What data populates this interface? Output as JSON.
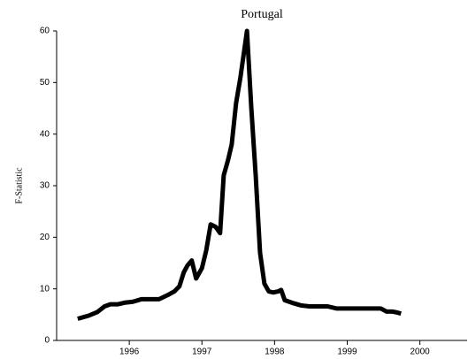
{
  "chart_data": {
    "type": "line",
    "title": "Portugal",
    "y_label": "F-Statistic",
    "x": [
      1995.29,
      1995.44,
      1995.56,
      1995.66,
      1995.74,
      1995.84,
      1995.93,
      1996.05,
      1996.17,
      1996.29,
      1996.41,
      1996.53,
      1996.62,
      1996.69,
      1996.75,
      1996.8,
      1996.86,
      1996.92,
      1997.0,
      1997.06,
      1997.12,
      1997.19,
      1997.25,
      1997.3,
      1997.36,
      1997.41,
      1997.47,
      1997.53,
      1997.58,
      1997.62,
      1997.68,
      1997.74,
      1997.8,
      1997.86,
      1997.92,
      1997.98,
      1998.05,
      1998.09,
      1998.14,
      1998.24,
      1998.36,
      1998.48,
      1998.61,
      1998.73,
      1998.85,
      1998.97,
      1999.09,
      1999.21,
      1999.33,
      1999.46,
      1999.54,
      1999.62,
      1999.69,
      1999.74
    ],
    "series": [
      {
        "name": "F-Statistic",
        "color": "#000000",
        "values": [
          4.2,
          4.8,
          5.5,
          6.6,
          7.0,
          7.0,
          7.3,
          7.5,
          8.0,
          8.0,
          8.0,
          8.8,
          9.5,
          10.5,
          13.2,
          14.5,
          15.5,
          12.0,
          14.0,
          17.5,
          22.5,
          22.0,
          20.8,
          32,
          35,
          38,
          46,
          51,
          56,
          60,
          45,
          32,
          17,
          11,
          9.5,
          9.3,
          9.5,
          9.8,
          7.8,
          7.3,
          6.8,
          6.6,
          6.6,
          6.6,
          6.2,
          6.2,
          6.2,
          6.2,
          6.2,
          6.2,
          5.6,
          5.6,
          5.4,
          5.2
        ]
      }
    ],
    "xlim": [
      1995.0,
      2000.65
    ],
    "xticks": [
      1996,
      1997,
      1998,
      1999,
      2000
    ],
    "ylim": [
      0,
      60
    ],
    "yticks": [
      0,
      10,
      20,
      30,
      40,
      50,
      60
    ]
  }
}
